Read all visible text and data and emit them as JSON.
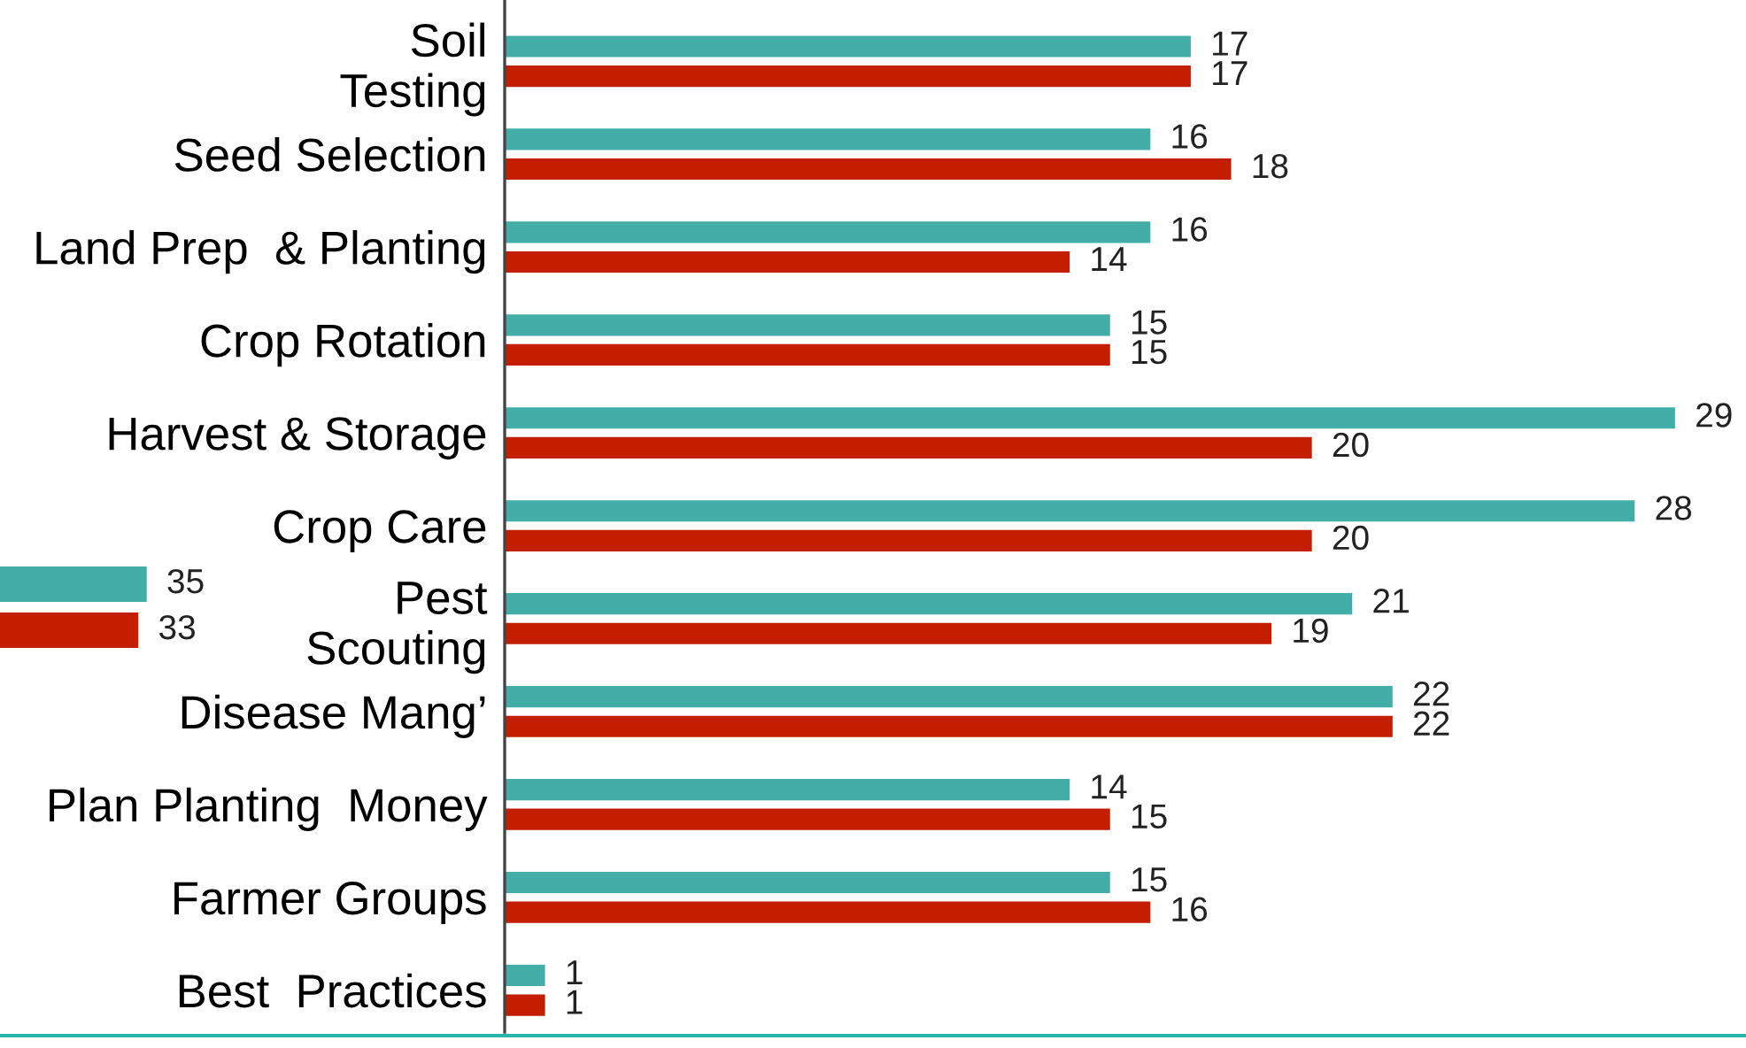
{
  "chart_data": [
    {
      "type": "bar",
      "orientation": "horizontal",
      "categories": [
        "Soil\nTesting",
        "Seed Selection",
        "Land Prep  & Planting",
        "Crop Rotation",
        "Harvest & Storage",
        "Crop Care",
        "Pest\nScouting",
        "Disease Mang’",
        "Plan Planting  Money",
        "Farmer Groups",
        "Best  Practices"
      ],
      "series": [
        {
          "color": "#42aea7",
          "values": [
            17,
            16,
            16,
            15,
            29,
            28,
            21,
            22,
            14,
            15,
            1
          ]
        },
        {
          "color": "#c41e00",
          "values": [
            17,
            18,
            14,
            15,
            20,
            20,
            19,
            22,
            15,
            16,
            1
          ]
        }
      ],
      "data_labels": true,
      "tick_labels": "y"
    },
    {
      "type": "bar",
      "orientation": "horizontal",
      "categories": [
        null,
        null
      ],
      "values": [
        35,
        33
      ],
      "colors": [
        "#42aea7",
        "#c41e00"
      ],
      "data_labels": true,
      "tick_labels": false
    }
  ]
}
